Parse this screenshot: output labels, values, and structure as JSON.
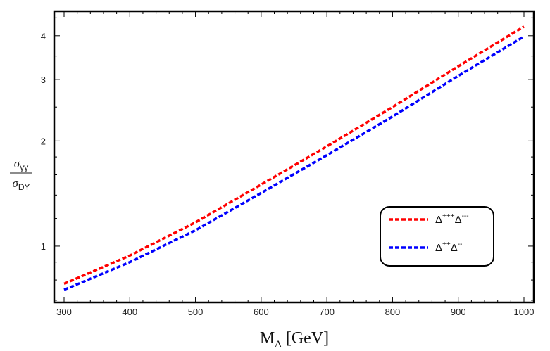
{
  "chart_data": {
    "type": "line",
    "title": "",
    "xlabel_main": "M",
    "xlabel_sub": "Δ",
    "xlabel_unit": "[GeV]",
    "ylabel": {
      "numerator": "σ",
      "numerator_sub": "γγ",
      "denominator": "σ",
      "denominator_sub": "DY"
    },
    "xlim": [
      285,
      1015
    ],
    "ylim": [
      0.69,
      4.7
    ],
    "yscale": "log",
    "xticks": [
      300,
      400,
      500,
      600,
      700,
      800,
      900,
      1000
    ],
    "yticks": [
      1,
      2,
      3,
      4
    ],
    "series": [
      {
        "name": "Δ+++Δ---",
        "label_base1": "Δ",
        "label_sup1": "+++",
        "label_base2": "Δ",
        "label_sup2": "---",
        "color": "#ff0000",
        "x": [
          300,
          400,
          500,
          600,
          700,
          800,
          900,
          1000
        ],
        "y": [
          0.78,
          0.94,
          1.17,
          1.5,
          1.93,
          2.5,
          3.27,
          4.25
        ]
      },
      {
        "name": "Δ++Δ--",
        "label_base1": "Δ",
        "label_sup1": "++",
        "label_base2": "Δ",
        "label_sup2": "--",
        "color": "#0000ff",
        "x": [
          300,
          400,
          500,
          600,
          700,
          800,
          900,
          1000
        ],
        "y": [
          0.75,
          0.9,
          1.11,
          1.42,
          1.82,
          2.35,
          3.07,
          3.98
        ]
      }
    ],
    "legend_position": "lower-right"
  }
}
